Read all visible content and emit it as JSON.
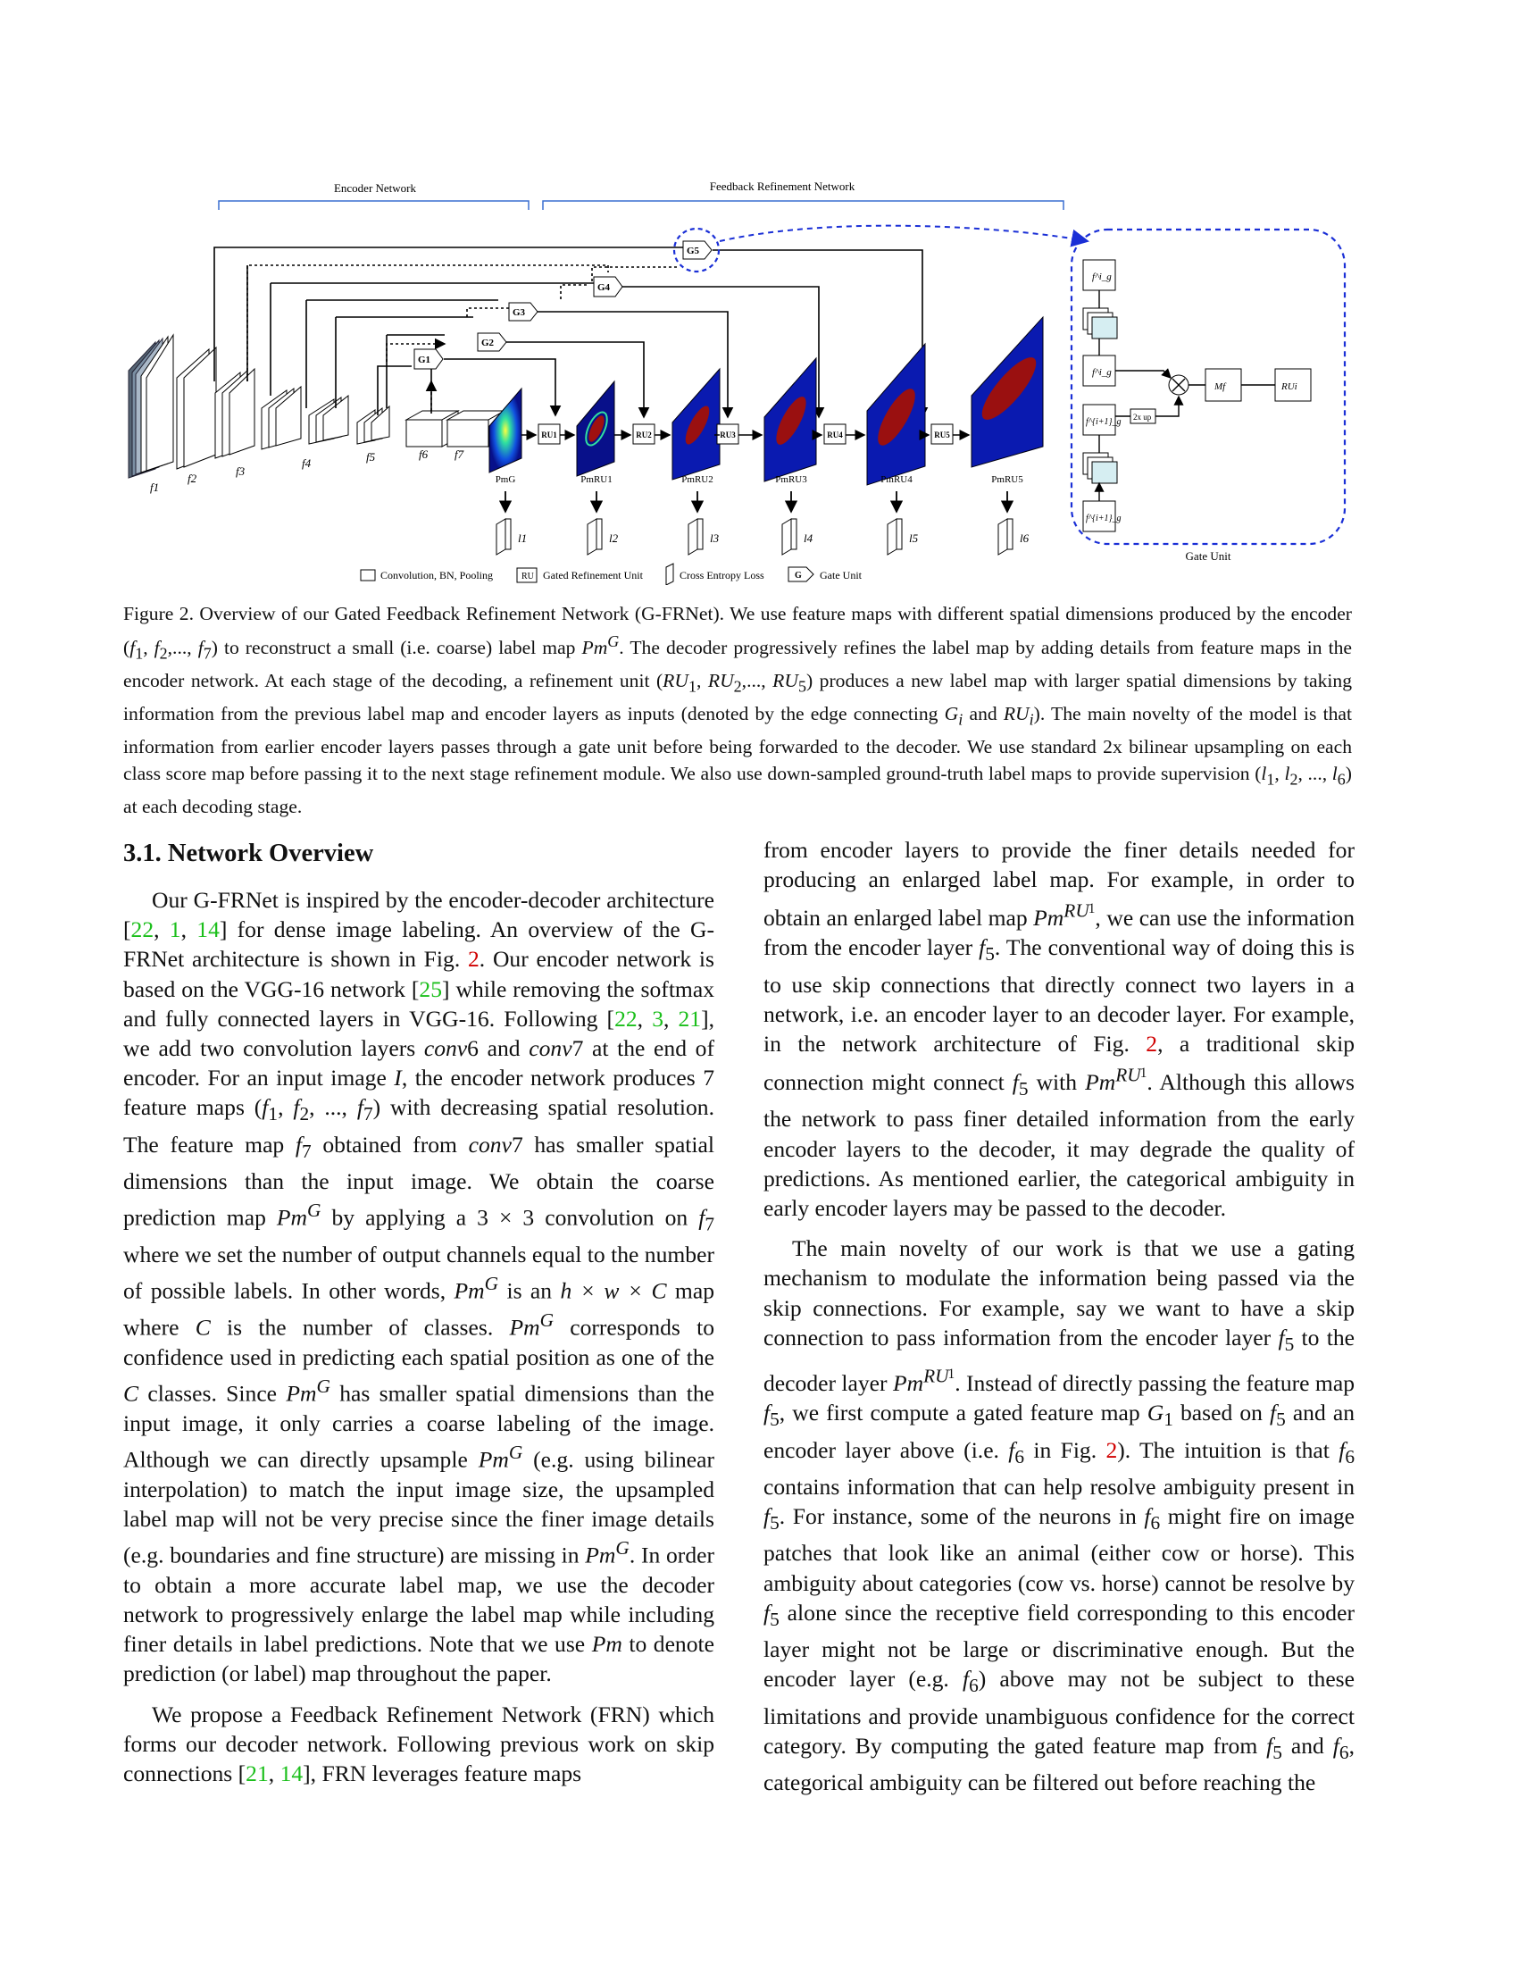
{
  "figure": {
    "encoder_label": "Encoder Network",
    "feedback_label": "Feedback Refinement Network",
    "gate_unit_label": "Gate Unit",
    "gates": [
      "G1",
      "G2",
      "G3",
      "G4",
      "G5"
    ],
    "ru_boxes": [
      "RU1",
      "RU2",
      "RU3",
      "RU4",
      "RU5"
    ],
    "f_labels": [
      "f1",
      "f2",
      "f3",
      "f4",
      "f5",
      "f6",
      "f7"
    ],
    "pm_labels": [
      "PmG",
      "PmRU1",
      "PmRU2",
      "PmRU3",
      "PmRU4",
      "PmRU5"
    ],
    "loss_labels": [
      "l1",
      "l2",
      "l3",
      "l4",
      "l5",
      "l6"
    ],
    "gate_inner": {
      "fig_top": "f^i_g",
      "fig_mid": "f^i_g",
      "fig_low": "f^{i+1}_g",
      "fig_bottom": "f^{i+1}_g",
      "up": "2x up",
      "mf": "Mf",
      "ru": "RUi"
    },
    "legend": {
      "conv": "Convolution, BN, Pooling",
      "ru_box": "RU",
      "ru": "Gated Refinement Unit",
      "loss": "Cross Entropy Loss",
      "g_box": "G",
      "gate": "Gate Unit"
    }
  },
  "caption": {
    "prefix": "Figure 2. Overview of our Gated Feedback Refinement Network (G-FRNet). We use feature maps with different spatial dimensions produced by the encoder (",
    "f1": "f",
    "s1": "1",
    "c1": ", ",
    "f2": "f",
    "s2": "2",
    "c2": ",..., ",
    "f7": "f",
    "s7": "7",
    "t1": ") to reconstruct a small (i.e. coarse) label map ",
    "pm": "Pm",
    "sup": "G",
    "t2": ". The decoder progressively refines the label map by adding details from feature maps in the encoder network. At each stage of the decoding, a refinement unit (",
    "ru1": "RU",
    "rs1": "1",
    "t3": ", ",
    "ru2": "RU",
    "rs2": "2",
    "t4": ",..., ",
    "ru5": "RU",
    "rs5": "5",
    "t5": ") produces a new label map with larger spatial dimensions by taking information from the previous label map and encoder layers as inputs (denoted by the edge connecting ",
    "gi": "G",
    "gis": "i",
    "t6": " and ",
    "rui": "RU",
    "ruis": "i",
    "t7": "). The main novelty of the model is that information from earlier encoder layers passes through a gate unit before being forwarded to the decoder. We use standard 2x bilinear upsampling on each class score map before passing it to the next stage refinement module. We also use down-sampled ground-truth label maps to provide supervision (",
    "l1": "l",
    "ls1": "1",
    "t8": ", ",
    "l2": "l",
    "ls2": "2",
    "t9": ", ..., ",
    "l6": "l",
    "ls6": "6",
    "t10": ") at each decoding stage."
  },
  "section": {
    "title": "3.1. Network Overview"
  },
  "left": {
    "p1": [
      "Our G-FRNet is inspired by the encoder-decoder architecture [",
      "22",
      ", ",
      "1",
      ", ",
      "14",
      "] for dense image labeling. An overview of the G-FRNet architecture is shown in Fig. ",
      "2",
      ". Our encoder network is based on the VGG-16 network [",
      "25",
      "] while removing the softmax and fully connected layers in VGG-16. Following [",
      "22",
      ", ",
      "3",
      ", ",
      "21",
      "], we add two convolution layers ",
      "conv",
      "6 and ",
      "conv",
      "7 at the end of encoder. For an input image ",
      "I",
      ", the encoder network produces 7 feature maps (",
      "f",
      "1",
      ", ",
      "f",
      "2",
      ", ..., ",
      "f",
      "7",
      ") with decreasing spatial resolution. The feature map ",
      "f",
      "7",
      " obtained from ",
      "conv",
      "7 has smaller spatial dimensions than the input image. We obtain the coarse prediction map ",
      "Pm",
      "G",
      " by applying a 3 × 3 convolution on ",
      "f",
      "7",
      " where we set the number of output channels equal to the number of possible labels. In other words, ",
      "Pm",
      "G",
      " is an ",
      "h × w × C",
      " map where ",
      "C",
      " is the number of classes. ",
      "Pm",
      "G",
      " corresponds to confidence used in predicting each spatial position as one of the ",
      "C",
      " classes. Since ",
      "Pm",
      "G",
      " has smaller spatial dimensions than the input image, it only carries a coarse labeling of the image. Although we can directly upsample ",
      "Pm",
      "G",
      " (e.g. using bilinear interpolation) to match the input image size, the upsampled label map will not be very precise since the finer image details (e.g. boundaries and fine structure) are missing in ",
      "Pm",
      "G",
      ". In order to obtain a more accurate label map, we use the decoder network to progressively enlarge the label map while including finer details in label predictions. Note that we use ",
      "Pm",
      " to denote prediction (or label) map throughout the paper."
    ],
    "p2": [
      "We propose a Feedback Refinement Network (FRN) which forms our decoder network. Following previous work on skip connections [",
      "21",
      ", ",
      "14",
      "], FRN leverages feature maps"
    ]
  },
  "right": {
    "p1": [
      "from encoder layers to provide the finer details needed for producing an enlarged label map. For example, in order to obtain an enlarged label map ",
      "Pm",
      "RU",
      "1",
      ", we can use the information from the encoder layer ",
      "f",
      "5",
      ". The conventional way of doing this is to use skip connections that directly connect two layers in a network, i.e. an encoder layer to an decoder layer. For example, in the network architecture of Fig. ",
      "2",
      ", a traditional skip connection might connect ",
      "f",
      "5",
      " with ",
      "Pm",
      "RU",
      "1",
      ". Although this allows the network to pass finer detailed information from the early encoder layers to the decoder, it may degrade the quality of predictions. As mentioned earlier, the categorical ambiguity in early encoder layers may be passed to the decoder."
    ],
    "p2": [
      "The main novelty of our work is that we use a gating mechanism to modulate the information being passed via the skip connections. For example, say we want to have a skip connection to pass information from the encoder layer ",
      "f",
      "5",
      " to the decoder layer ",
      "Pm",
      "RU",
      "1",
      ". Instead of directly passing the feature map ",
      "f",
      "5",
      ", we first compute a gated feature map ",
      "G",
      "1",
      " based on ",
      "f",
      "5",
      " and an encoder layer above (i.e. ",
      "f",
      "6",
      " in Fig. ",
      "2",
      "). The intuition is that ",
      "f",
      "6",
      " contains information that can help resolve ambiguity present in ",
      "f",
      "5",
      ". For instance, some of the neurons in ",
      "f",
      "6",
      " might fire on image patches that look like an animal (either cow or horse). This ambiguity about categories (cow vs. horse) cannot be resolve by ",
      "f",
      "5",
      " alone since the receptive field corresponding to this encoder layer might not be large or discriminative enough. But the encoder layer (e.g. ",
      "f",
      "6",
      ") above may not be subject to these limitations and provide unambiguous confidence for the correct category. By computing the gated feature map from ",
      "f",
      "5",
      " and ",
      "f",
      "6",
      ", categorical ambiguity can be filtered out before reaching the"
    ]
  }
}
